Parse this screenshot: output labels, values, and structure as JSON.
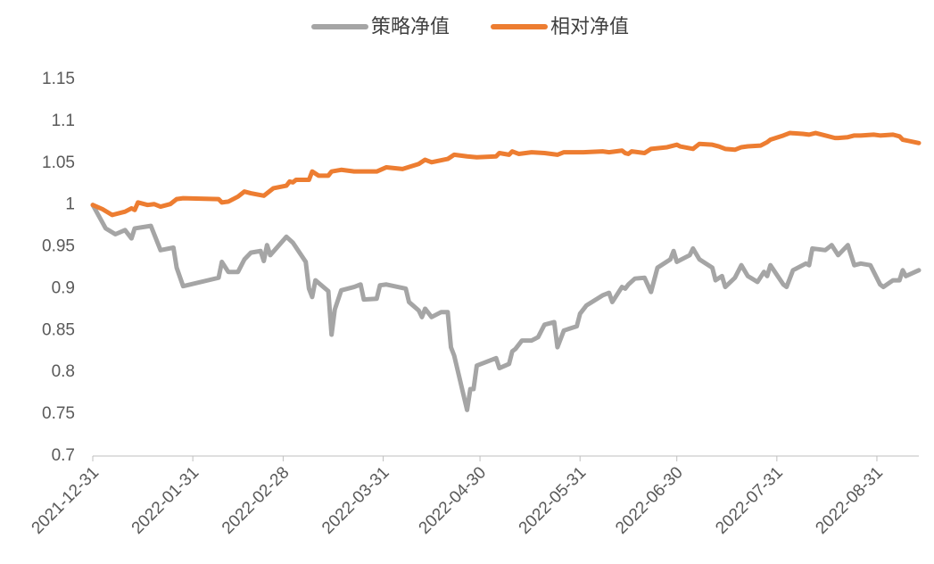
{
  "chart_data": {
    "type": "line",
    "xlim": [
      "2021-12-31",
      "2022-09-13"
    ],
    "xticks": [
      "2021-12-31",
      "2022-01-31",
      "2022-02-28",
      "2022-03-31",
      "2022-04-30",
      "2022-05-31",
      "2022-06-30",
      "2022-07-31",
      "2022-08-31"
    ],
    "ylim": [
      0.7,
      1.15
    ],
    "yticks": [
      0.7,
      0.75,
      0.8,
      0.85,
      0.9,
      0.95,
      1,
      1.05,
      1.1,
      1.15
    ],
    "grid": false,
    "legend": "top",
    "series": [
      {
        "name": "策略净值",
        "color": "#a5a5a5",
        "x": [
          "2021-12-31",
          "2022-01-04",
          "2022-01-07",
          "2022-01-10",
          "2022-01-12",
          "2022-01-13",
          "2022-01-18",
          "2022-01-21",
          "2022-01-25",
          "2022-01-26",
          "2022-01-28",
          "2022-02-08",
          "2022-02-09",
          "2022-02-11",
          "2022-02-14",
          "2022-02-16",
          "2022-02-18",
          "2022-02-21",
          "2022-02-22",
          "2022-02-23",
          "2022-02-24",
          "2022-03-01",
          "2022-03-03",
          "2022-03-07",
          "2022-03-08",
          "2022-03-09",
          "2022-03-10",
          "2022-03-14",
          "2022-03-15",
          "2022-03-16",
          "2022-03-18",
          "2022-03-22",
          "2022-03-24",
          "2022-03-25",
          "2022-03-29",
          "2022-03-30",
          "2022-04-01",
          "2022-04-07",
          "2022-04-08",
          "2022-04-11",
          "2022-04-12",
          "2022-04-13",
          "2022-04-15",
          "2022-04-18",
          "2022-04-20",
          "2022-04-21",
          "2022-04-22",
          "2022-04-26",
          "2022-04-27",
          "2022-04-28",
          "2022-04-29",
          "2022-05-05",
          "2022-05-06",
          "2022-05-09",
          "2022-05-10",
          "2022-05-11",
          "2022-05-13",
          "2022-05-16",
          "2022-05-18",
          "2022-05-20",
          "2022-05-23",
          "2022-05-24",
          "2022-05-26",
          "2022-05-30",
          "2022-05-31",
          "2022-06-02",
          "2022-06-07",
          "2022-06-09",
          "2022-06-10",
          "2022-06-13",
          "2022-06-14",
          "2022-06-15",
          "2022-06-17",
          "2022-06-20",
          "2022-06-22",
          "2022-06-24",
          "2022-06-28",
          "2022-06-29",
          "2022-06-30",
          "2022-07-04",
          "2022-07-05",
          "2022-07-07",
          "2022-07-11",
          "2022-07-12",
          "2022-07-14",
          "2022-07-15",
          "2022-07-18",
          "2022-07-20",
          "2022-07-22",
          "2022-07-25",
          "2022-07-27",
          "2022-07-28",
          "2022-07-29",
          "2022-08-02",
          "2022-08-03",
          "2022-08-05",
          "2022-08-09",
          "2022-08-10",
          "2022-08-11",
          "2022-08-15",
          "2022-08-17",
          "2022-08-19",
          "2022-08-22",
          "2022-08-24",
          "2022-08-26",
          "2022-08-29",
          "2022-09-01",
          "2022-09-02",
          "2022-09-05",
          "2022-09-07",
          "2022-09-08",
          "2022-09-09",
          "2022-09-13"
        ],
        "values": [
          1.0,
          0.972,
          0.965,
          0.97,
          0.96,
          0.972,
          0.975,
          0.946,
          0.949,
          0.925,
          0.903,
          0.913,
          0.932,
          0.92,
          0.92,
          0.935,
          0.943,
          0.945,
          0.933,
          0.952,
          0.94,
          0.962,
          0.955,
          0.932,
          0.9,
          0.89,
          0.91,
          0.897,
          0.845,
          0.875,
          0.898,
          0.902,
          0.905,
          0.887,
          0.888,
          0.904,
          0.905,
          0.9,
          0.884,
          0.874,
          0.866,
          0.876,
          0.866,
          0.872,
          0.872,
          0.83,
          0.82,
          0.755,
          0.78,
          0.78,
          0.808,
          0.817,
          0.805,
          0.81,
          0.825,
          0.828,
          0.838,
          0.838,
          0.842,
          0.857,
          0.86,
          0.83,
          0.85,
          0.855,
          0.87,
          0.88,
          0.892,
          0.895,
          0.884,
          0.902,
          0.9,
          0.905,
          0.912,
          0.913,
          0.896,
          0.925,
          0.935,
          0.945,
          0.932,
          0.94,
          0.948,
          0.935,
          0.925,
          0.91,
          0.915,
          0.902,
          0.913,
          0.928,
          0.915,
          0.908,
          0.92,
          0.915,
          0.928,
          0.905,
          0.902,
          0.922,
          0.93,
          0.928,
          0.948,
          0.946,
          0.952,
          0.94,
          0.952,
          0.928,
          0.93,
          0.928,
          0.905,
          0.902,
          0.91,
          0.91,
          0.922,
          0.915,
          0.922
        ]
      },
      {
        "name": "相对净值",
        "color": "#ed7d31",
        "x": [
          "2021-12-31",
          "2022-01-03",
          "2022-01-06",
          "2022-01-10",
          "2022-01-12",
          "2022-01-13",
          "2022-01-14",
          "2022-01-17",
          "2022-01-19",
          "2022-01-21",
          "2022-01-24",
          "2022-01-26",
          "2022-01-28",
          "2022-02-08",
          "2022-02-09",
          "2022-02-11",
          "2022-02-14",
          "2022-02-16",
          "2022-02-18",
          "2022-02-22",
          "2022-02-25",
          "2022-03-01",
          "2022-03-02",
          "2022-03-03",
          "2022-03-04",
          "2022-03-08",
          "2022-03-09",
          "2022-03-11",
          "2022-03-14",
          "2022-03-15",
          "2022-03-18",
          "2022-03-22",
          "2022-03-24",
          "2022-03-29",
          "2022-04-01",
          "2022-04-06",
          "2022-04-11",
          "2022-04-13",
          "2022-04-15",
          "2022-04-20",
          "2022-04-22",
          "2022-04-26",
          "2022-04-29",
          "2022-05-05",
          "2022-05-06",
          "2022-05-09",
          "2022-05-10",
          "2022-05-12",
          "2022-05-16",
          "2022-05-20",
          "2022-05-24",
          "2022-05-26",
          "2022-06-01",
          "2022-06-07",
          "2022-06-09",
          "2022-06-13",
          "2022-06-14",
          "2022-06-15",
          "2022-06-16",
          "2022-06-20",
          "2022-06-22",
          "2022-06-27",
          "2022-06-30",
          "2022-07-01",
          "2022-07-05",
          "2022-07-07",
          "2022-07-11",
          "2022-07-13",
          "2022-07-15",
          "2022-07-18",
          "2022-07-20",
          "2022-07-22",
          "2022-07-26",
          "2022-07-28",
          "2022-07-29",
          "2022-08-02",
          "2022-08-04",
          "2022-08-08",
          "2022-08-10",
          "2022-08-12",
          "2022-08-15",
          "2022-08-18",
          "2022-08-19",
          "2022-08-22",
          "2022-08-24",
          "2022-08-26",
          "2022-08-30",
          "2022-09-01",
          "2022-09-05",
          "2022-09-07",
          "2022-09-08",
          "2022-09-13"
        ],
        "values": [
          1.0,
          0.995,
          0.988,
          0.992,
          0.996,
          0.994,
          1.003,
          1.0,
          1.001,
          0.998,
          1.001,
          1.007,
          1.008,
          1.007,
          1.003,
          1.004,
          1.01,
          1.016,
          1.014,
          1.011,
          1.02,
          1.023,
          1.028,
          1.027,
          1.03,
          1.03,
          1.04,
          1.035,
          1.035,
          1.04,
          1.042,
          1.04,
          1.04,
          1.04,
          1.045,
          1.043,
          1.049,
          1.054,
          1.051,
          1.055,
          1.06,
          1.058,
          1.057,
          1.058,
          1.062,
          1.06,
          1.064,
          1.061,
          1.063,
          1.062,
          1.06,
          1.063,
          1.063,
          1.064,
          1.063,
          1.065,
          1.062,
          1.061,
          1.064,
          1.062,
          1.067,
          1.069,
          1.072,
          1.07,
          1.067,
          1.073,
          1.072,
          1.07,
          1.067,
          1.066,
          1.069,
          1.07,
          1.071,
          1.075,
          1.078,
          1.083,
          1.086,
          1.085,
          1.084,
          1.086,
          1.083,
          1.08,
          1.08,
          1.081,
          1.083,
          1.083,
          1.084,
          1.083,
          1.084,
          1.082,
          1.078,
          1.074
        ]
      }
    ]
  }
}
